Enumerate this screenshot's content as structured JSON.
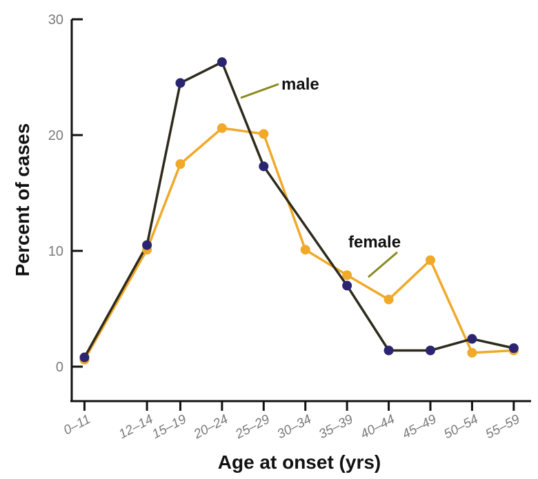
{
  "chart_data": {
    "type": "line",
    "xlabel": "Age at onset (yrs)",
    "ylabel": "Percent of cases",
    "categories": [
      "0–11",
      "12–14",
      "15–19",
      "20–24",
      "25–29",
      "30–34",
      "35–39",
      "40–44",
      "45–49",
      "50–54",
      "55–59"
    ],
    "x_numeric": [
      5.5,
      13,
      17,
      22,
      27,
      32,
      37,
      42,
      47,
      52,
      57
    ],
    "yticks": [
      0,
      10,
      20,
      30
    ],
    "ylim": [
      -2.5,
      30
    ],
    "grid": false,
    "series": [
      {
        "name": "male",
        "color": "#2e2a1c",
        "marker_color": "#2b2570",
        "values": [
          0.8,
          10.5,
          24.5,
          26.3,
          17.3,
          null,
          7.0,
          1.4,
          1.4,
          2.4,
          1.6
        ]
      },
      {
        "name": "female",
        "color": "#f0a929",
        "marker_color": "#f0a929",
        "values": [
          0.6,
          10.1,
          17.5,
          20.6,
          20.1,
          10.1,
          7.9,
          5.8,
          9.2,
          1.2,
          1.4
        ]
      }
    ]
  }
}
